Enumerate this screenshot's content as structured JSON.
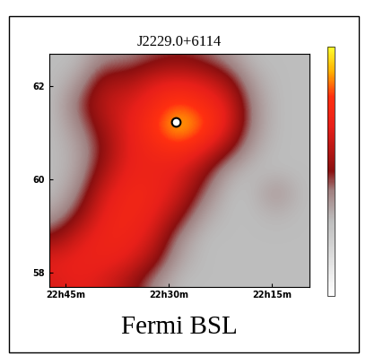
{
  "chart_data": {
    "type": "heatmap",
    "title": "J2229.0+6114",
    "caption": "Fermi BSL",
    "x": [
      22.78,
      22.72,
      22.66,
      22.6,
      22.54,
      22.48,
      22.42,
      22.36,
      22.3,
      22.24,
      22.18
    ],
    "y": [
      57.8,
      58.28,
      58.76,
      59.24,
      59.72,
      60.2,
      60.68,
      61.16,
      61.64,
      62.12,
      62.6
    ],
    "cells": [
      [
        6.5,
        6.8,
        6.5,
        5.5,
        4.0,
        3.0,
        3.0,
        3.0,
        3.0,
        3.0,
        3.0
      ],
      [
        6.8,
        7.0,
        7.0,
        6.8,
        5.5,
        3.5,
        3.0,
        3.0,
        3.0,
        3.0,
        3.0
      ],
      [
        5.0,
        6.5,
        7.2,
        7.2,
        6.5,
        4.0,
        3.0,
        3.0,
        3.0,
        3.0,
        3.0
      ],
      [
        3.5,
        5.0,
        7.0,
        7.3,
        7.0,
        5.5,
        3.5,
        3.0,
        3.0,
        3.2,
        3.0
      ],
      [
        3.0,
        4.0,
        6.5,
        7.3,
        7.2,
        6.5,
        4.5,
        3.0,
        3.0,
        4.0,
        3.0
      ],
      [
        3.0,
        3.5,
        5.5,
        7.0,
        7.0,
        6.8,
        5.5,
        3.5,
        3.0,
        3.0,
        3.0
      ],
      [
        3.0,
        3.5,
        5.0,
        6.8,
        7.3,
        7.8,
        7.2,
        5.5,
        3.5,
        3.0,
        3.0
      ],
      [
        3.0,
        4.0,
        5.5,
        6.8,
        7.8,
        9.6,
        8.5,
        7.0,
        4.0,
        3.0,
        3.0
      ],
      [
        3.0,
        4.5,
        6.0,
        6.5,
        7.3,
        8.2,
        7.6,
        6.8,
        4.0,
        3.0,
        3.0
      ],
      [
        3.0,
        3.5,
        5.5,
        5.5,
        6.5,
        6.8,
        6.5,
        5.5,
        3.5,
        3.0,
        3.0
      ],
      [
        3.0,
        3.0,
        4.0,
        4.0,
        4.5,
        4.8,
        4.5,
        3.8,
        3.0,
        3.0,
        3.0
      ]
    ],
    "colorbar_range": [
      0,
      10
    ],
    "source_position": [
      22.483,
      61.23
    ],
    "xlim": [
      22.79,
      22.16
    ],
    "ylim": [
      57.7,
      62.7
    ],
    "xticks": [
      {
        "value": 22.75,
        "label": "22h45m"
      },
      {
        "value": 22.5,
        "label": "22h30m"
      },
      {
        "value": 22.25,
        "label": "22h15m"
      }
    ],
    "yticks": [
      58,
      60,
      62
    ]
  }
}
